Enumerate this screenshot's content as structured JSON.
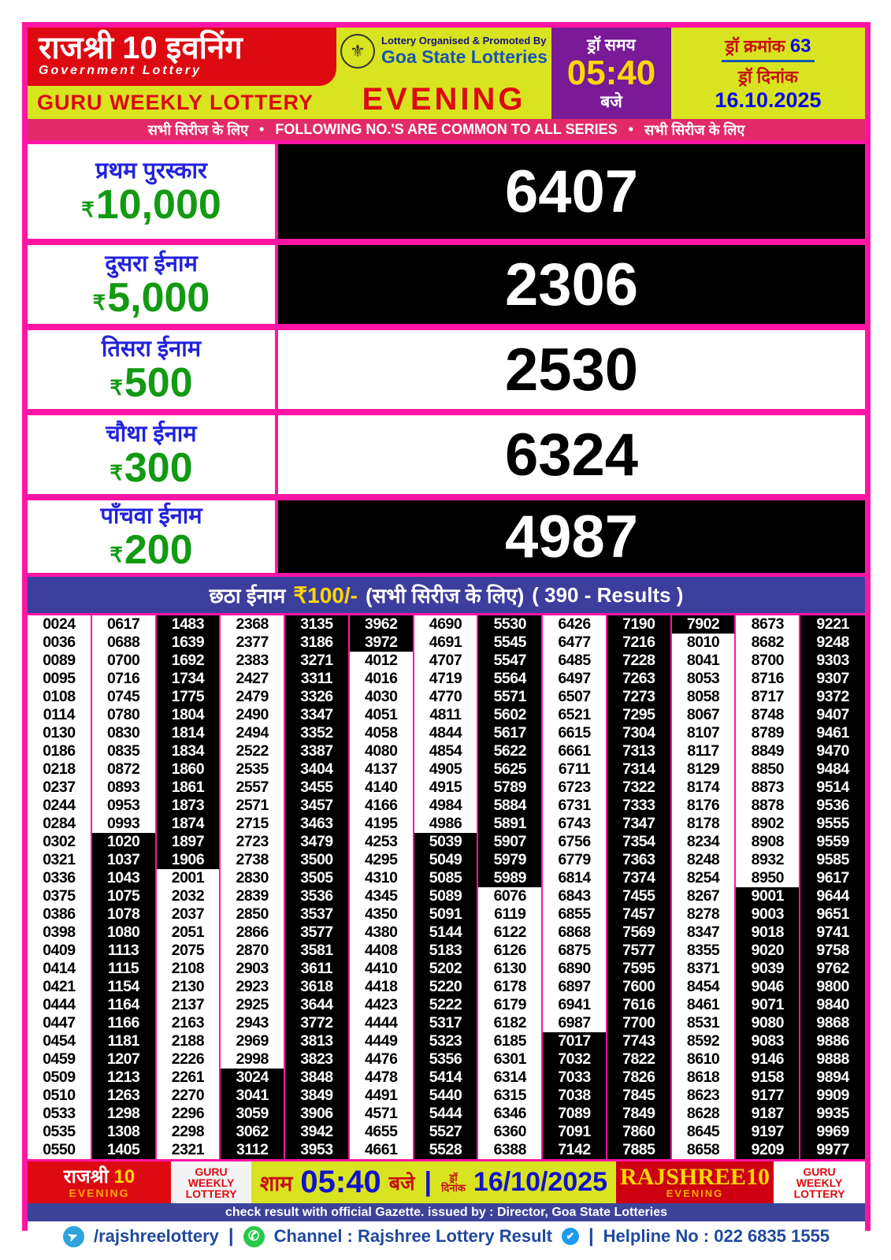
{
  "header": {
    "title": "राजश्री 10 इवनिंग",
    "subtitle": "Government Lottery",
    "weekly": "GURU WEEKLY LOTTERY",
    "organised_by": "Lottery Organised & Promoted By",
    "organisation": "Goa State Lotteries",
    "session": "EVENING",
    "draw_time_label": "ड्रॉ समय",
    "draw_time": "05:40",
    "draw_time_suffix": "बजे",
    "draw_no_label": "ड्रॉ क्रमांक",
    "draw_no": "63",
    "draw_date_label": "ड्रॉ दिनांक",
    "draw_date": "16.10.2025"
  },
  "series_banner": {
    "left": "सभी सिरीज के लिए",
    "bullet": "•",
    "center": "FOLLOWING NO.'S ARE COMMON TO ALL SERIES",
    "right": "सभी सिरीज के लिए"
  },
  "prizes": [
    {
      "label": "प्रथम पुरस्कार",
      "rupee": "₹",
      "amount": "10,000",
      "number": "6407",
      "dark": true
    },
    {
      "label": "दुसरा ईनाम",
      "rupee": "₹",
      "amount": "5,000",
      "number": "2306",
      "dark": true
    },
    {
      "label": "तिसरा ईनाम",
      "rupee": "₹",
      "amount": "500",
      "number": "2530",
      "dark": false
    },
    {
      "label": "चौथा ईनाम",
      "rupee": "₹",
      "amount": "300",
      "number": "6324",
      "dark": false
    },
    {
      "label": "पाँचवा ईनाम",
      "rupee": "₹",
      "amount": "200",
      "number": "4987",
      "dark": true
    }
  ],
  "sixth_prize": {
    "label": "छठा ईनाम",
    "amount": "₹100/-",
    "note": "(सभी सिरीज के लिए)",
    "results": "( 390 - Results )"
  },
  "results_grid": {
    "columns": [
      [
        "0024",
        "0036",
        "0089",
        "0095",
        "0108",
        "0114",
        "0130",
        "0186",
        "0218",
        "0237",
        "0244",
        "0284",
        "0302",
        "0321",
        "0336",
        "0375",
        "0386",
        "0398",
        "0409",
        "0414",
        "0421",
        "0444",
        "0447",
        "0454",
        "0459",
        "0509",
        "0510",
        "0533",
        "0535",
        "0550"
      ],
      [
        "0617",
        "0688",
        "0700",
        "0716",
        "0745",
        "0780",
        "0830",
        "0835",
        "0872",
        "0893",
        "0953",
        "0993",
        "1020",
        "1037",
        "1043",
        "1075",
        "1078",
        "1080",
        "1113",
        "1115",
        "1154",
        "1164",
        "1166",
        "1181",
        "1207",
        "1213",
        "1263",
        "1298",
        "1308",
        "1405"
      ],
      [
        "1483",
        "1639",
        "1692",
        "1734",
        "1775",
        "1804",
        "1814",
        "1834",
        "1860",
        "1861",
        "1873",
        "1874",
        "1897",
        "1906",
        "2001",
        "2032",
        "2037",
        "2051",
        "2075",
        "2108",
        "2130",
        "2137",
        "2163",
        "2188",
        "2226",
        "2261",
        "2270",
        "2296",
        "2298",
        "2321"
      ],
      [
        "2368",
        "2377",
        "2383",
        "2427",
        "2479",
        "2490",
        "2494",
        "2522",
        "2535",
        "2557",
        "2571",
        "2715",
        "2723",
        "2738",
        "2830",
        "2839",
        "2850",
        "2866",
        "2870",
        "2903",
        "2923",
        "2925",
        "2943",
        "2969",
        "2998",
        "3024",
        "3041",
        "3059",
        "3062",
        "3112"
      ],
      [
        "3135",
        "3186",
        "3271",
        "3311",
        "3326",
        "3347",
        "3352",
        "3387",
        "3404",
        "3455",
        "3457",
        "3463",
        "3479",
        "3500",
        "3505",
        "3536",
        "3537",
        "3577",
        "3581",
        "3611",
        "3618",
        "3644",
        "3772",
        "3813",
        "3823",
        "3848",
        "3849",
        "3906",
        "3942",
        "3953"
      ],
      [
        "3962",
        "3972",
        "4012",
        "4016",
        "4030",
        "4051",
        "4058",
        "4080",
        "4137",
        "4140",
        "4166",
        "4195",
        "4253",
        "4295",
        "4310",
        "4345",
        "4350",
        "4380",
        "4408",
        "4410",
        "4418",
        "4423",
        "4444",
        "4449",
        "4476",
        "4478",
        "4491",
        "4571",
        "4655",
        "4661"
      ],
      [
        "4690",
        "4691",
        "4707",
        "4719",
        "4770",
        "4811",
        "4844",
        "4854",
        "4905",
        "4915",
        "4984",
        "4986",
        "5039",
        "5049",
        "5085",
        "5089",
        "5091",
        "5144",
        "5183",
        "5202",
        "5220",
        "5222",
        "5317",
        "5323",
        "5356",
        "5414",
        "5440",
        "5444",
        "5527",
        "5528"
      ],
      [
        "5530",
        "5545",
        "5547",
        "5564",
        "5571",
        "5602",
        "5617",
        "5622",
        "5625",
        "5789",
        "5884",
        "5891",
        "5907",
        "5979",
        "5989",
        "6076",
        "6119",
        "6122",
        "6126",
        "6130",
        "6178",
        "6179",
        "6182",
        "6185",
        "6301",
        "6314",
        "6315",
        "6346",
        "6360",
        "6388"
      ],
      [
        "6426",
        "6477",
        "6485",
        "6497",
        "6507",
        "6521",
        "6615",
        "6661",
        "6711",
        "6723",
        "6731",
        "6743",
        "6756",
        "6779",
        "6814",
        "6843",
        "6855",
        "6868",
        "6875",
        "6890",
        "6897",
        "6941",
        "6987",
        "7017",
        "7032",
        "7033",
        "7038",
        "7089",
        "7091",
        "7142"
      ],
      [
        "7190",
        "7216",
        "7228",
        "7263",
        "7273",
        "7295",
        "7304",
        "7313",
        "7314",
        "7322",
        "7333",
        "7347",
        "7354",
        "7363",
        "7374",
        "7455",
        "7457",
        "7569",
        "7577",
        "7595",
        "7600",
        "7616",
        "7700",
        "7743",
        "7822",
        "7826",
        "7845",
        "7849",
        "7860",
        "7885"
      ],
      [
        "7902",
        "8010",
        "8041",
        "8053",
        "8058",
        "8067",
        "8107",
        "8117",
        "8129",
        "8174",
        "8176",
        "8178",
        "8234",
        "8248",
        "8254",
        "8267",
        "8278",
        "8347",
        "8355",
        "8371",
        "8454",
        "8461",
        "8531",
        "8592",
        "8610",
        "8618",
        "8623",
        "8628",
        "8645",
        "8658"
      ],
      [
        "8673",
        "8682",
        "8700",
        "8716",
        "8717",
        "8748",
        "8789",
        "8849",
        "8850",
        "8873",
        "8878",
        "8902",
        "8908",
        "8932",
        "8950",
        "9001",
        "9003",
        "9018",
        "9020",
        "9039",
        "9046",
        "9071",
        "9080",
        "9083",
        "9146",
        "9158",
        "9177",
        "9187",
        "9197",
        "9209"
      ],
      [
        "9221",
        "9248",
        "9303",
        "9307",
        "9372",
        "9407",
        "9461",
        "9470",
        "9484",
        "9514",
        "9536",
        "9555",
        "9559",
        "9585",
        "9617",
        "9644",
        "9651",
        "9741",
        "9758",
        "9762",
        "9800",
        "9840",
        "9868",
        "9886",
        "9888",
        "9894",
        "9909",
        "9935",
        "9969",
        "9977"
      ]
    ]
  },
  "footer": {
    "brand_hi": "राजश्री",
    "brand_num": "10",
    "brand_session": "EVENING",
    "guru_line1": "GURU",
    "guru_line2": "WEEKLY",
    "guru_line3": "LOTTERY",
    "sham": "शाम",
    "time": "05:40",
    "baje": "बजे",
    "pipe": "|",
    "draw_word": "ड्रॉ",
    "date_word": "दिनांक",
    "date": "16/10/2025",
    "brand_en": "RAJSHREE10",
    "brand_en_session": "EVENING",
    "gazette_note": "check result with official Gazette. issued by : Director, Goa State Lotteries",
    "telegram_handle": "/rajshreelottery",
    "separator": "|",
    "channel": "Channel : Rajshree Lottery Result",
    "helpline": "Helpline No : 022 6835 1555"
  },
  "colors": {
    "pink_border": "#ff15a3",
    "banner_pink": "#e22a68",
    "red": "#dd0a12",
    "chartreuse": "#d9e421",
    "purple": "#7a1a96",
    "blue_text": "#0b0beb",
    "green_amount": "#129a12",
    "sixth_banner_blue": "#3c3e9d",
    "footer_strip_blue": "#3c4399",
    "contact_blue": "#21489f"
  }
}
